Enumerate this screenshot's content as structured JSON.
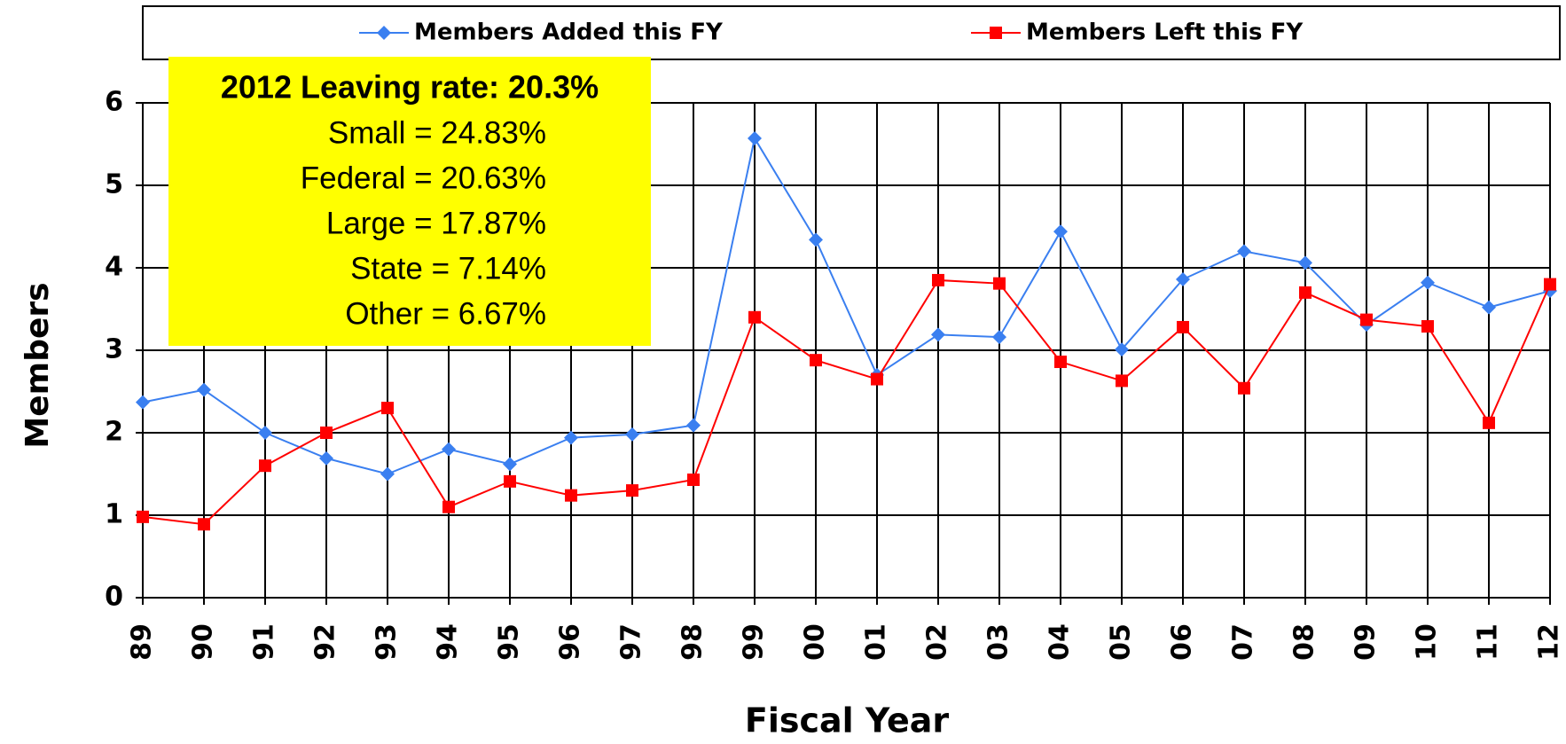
{
  "chart_data": {
    "type": "line",
    "x_label": "Fiscal Year",
    "y_label": "Members",
    "categories": [
      "89",
      "90",
      "91",
      "92",
      "93",
      "94",
      "95",
      "96",
      "97",
      "98",
      "99",
      "00",
      "01",
      "02",
      "03",
      "04",
      "05",
      "06",
      "07",
      "08",
      "09",
      "10",
      "11",
      "12"
    ],
    "series": [
      {
        "name": "Members Added this FY",
        "color": "#3a7ff0",
        "marker": "diamond",
        "values": [
          2.37,
          2.52,
          2.0,
          1.69,
          1.5,
          1.8,
          1.62,
          1.94,
          1.98,
          2.09,
          5.57,
          4.34,
          2.7,
          3.19,
          3.16,
          4.44,
          3.01,
          3.86,
          4.2,
          4.06,
          3.31,
          3.82,
          3.52,
          3.72
        ]
      },
      {
        "name": "Members Left this FY",
        "color": "#ff0000",
        "marker": "square",
        "values": [
          0.98,
          0.89,
          1.6,
          2.0,
          2.3,
          1.1,
          1.41,
          1.24,
          1.3,
          1.43,
          3.4,
          2.88,
          2.65,
          3.85,
          3.81,
          2.86,
          2.63,
          3.28,
          2.54,
          3.7,
          3.37,
          3.29,
          2.12,
          3.8
        ]
      }
    ],
    "ylim": [
      0,
      6
    ],
    "yticks": [
      0,
      1,
      2,
      3,
      4,
      5,
      6
    ],
    "grid": true,
    "legend": "top",
    "annotation": {
      "title": "2012 Leaving rate: 20.3%",
      "lines": [
        "Small = 24.83%",
        "Federal = 20.63%",
        "Large = 17.87%",
        "State = 7.14%",
        "Other = 6.67%"
      ],
      "color": "#ffff00"
    }
  }
}
